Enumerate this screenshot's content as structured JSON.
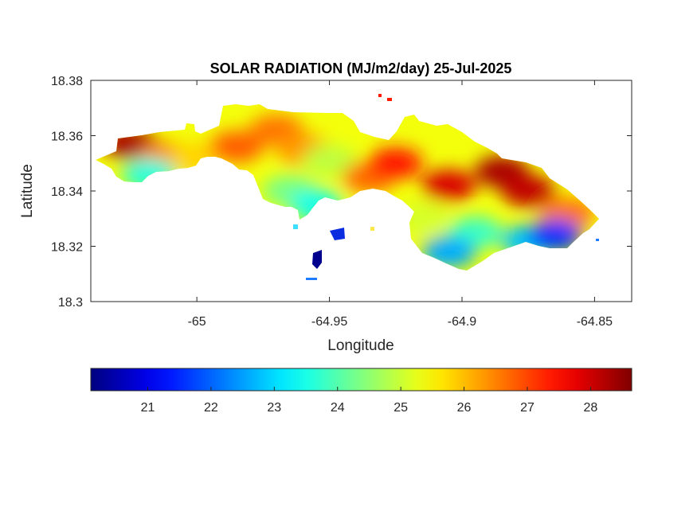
{
  "chart_data": {
    "type": "heatmap",
    "title": "SOLAR RADIATION (MJ/m2/day) 25-Jul-2025",
    "xlabel": "Longitude",
    "ylabel": "Latitude",
    "xlim": [
      -65.04,
      -64.836
    ],
    "ylim": [
      18.3,
      18.38
    ],
    "xticks": [
      "-65",
      "-64.95",
      "-64.9",
      "-64.85"
    ],
    "yticks": [
      "18.3",
      "18.32",
      "18.34",
      "18.36",
      "18.38"
    ],
    "grid": false,
    "colormap": "jet",
    "colorbar": {
      "location": "bottom",
      "range": [
        20.1,
        28.65
      ],
      "ticks": [
        "21",
        "22",
        "23",
        "24",
        "25",
        "26",
        "27",
        "28"
      ]
    },
    "regions": [
      {
        "lon": -65.025,
        "lat": 18.357,
        "value": 28.3
      },
      {
        "lon": -65.012,
        "lat": 18.352,
        "value": 26.5
      },
      {
        "lon": -65.018,
        "lat": 18.346,
        "value": 23.6
      },
      {
        "lon": -65.0,
        "lat": 18.352,
        "value": 25.8
      },
      {
        "lon": -64.985,
        "lat": 18.356,
        "value": 26.8
      },
      {
        "lon": -64.97,
        "lat": 18.362,
        "value": 26.6
      },
      {
        "lon": -64.96,
        "lat": 18.355,
        "value": 26.3
      },
      {
        "lon": -64.95,
        "lat": 18.351,
        "value": 24.9
      },
      {
        "lon": -64.965,
        "lat": 18.34,
        "value": 24.3
      },
      {
        "lon": -64.955,
        "lat": 18.335,
        "value": 23.5
      },
      {
        "lon": -64.935,
        "lat": 18.345,
        "value": 26.7
      },
      {
        "lon": -64.925,
        "lat": 18.35,
        "value": 27.4
      },
      {
        "lon": -64.905,
        "lat": 18.342,
        "value": 27.9
      },
      {
        "lon": -64.885,
        "lat": 18.347,
        "value": 28.3
      },
      {
        "lon": -64.875,
        "lat": 18.34,
        "value": 28.1
      },
      {
        "lon": -64.86,
        "lat": 18.332,
        "value": 26.6
      },
      {
        "lon": -64.915,
        "lat": 18.33,
        "value": 25.1
      },
      {
        "lon": -64.895,
        "lat": 18.325,
        "value": 23.8
      },
      {
        "lon": -64.875,
        "lat": 18.322,
        "value": 22.8
      },
      {
        "lon": -64.865,
        "lat": 18.324,
        "value": 21.6
      },
      {
        "lon": -64.905,
        "lat": 18.318,
        "value": 22.6
      },
      {
        "lon": -64.948,
        "lat": 18.324,
        "value": 20.3
      }
    ]
  }
}
